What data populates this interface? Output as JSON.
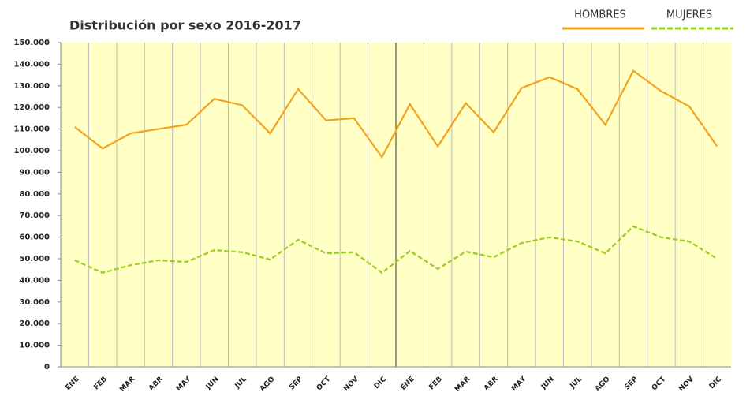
{
  "chart_data": {
    "type": "line",
    "title": "Distribución por sexo 2016-2017",
    "categories": [
      "ENE",
      "FEB",
      "MAR",
      "ABR",
      "MAY",
      "JUN",
      "JUL",
      "AGO",
      "SEP",
      "OCT",
      "NOV",
      "DIC",
      "ENE",
      "FEB",
      "MAR",
      "ABR",
      "MAY",
      "JUN",
      "JUL",
      "AGO",
      "SEP",
      "OCT",
      "NOV",
      "DIC"
    ],
    "series": [
      {
        "name": "HOMBRES",
        "color": "#f4a21e",
        "dash": false,
        "values": [
          111000,
          101000,
          108000,
          110000,
          112000,
          124000,
          121000,
          108000,
          128500,
          114000,
          115000,
          97000,
          121500,
          102000,
          122000,
          108500,
          129000,
          134000,
          128500,
          112000,
          137000,
          127500,
          120500,
          102000
        ]
      },
      {
        "name": "MUJERES",
        "color": "#9acd1e",
        "dash": true,
        "values": [
          49300,
          43500,
          47000,
          49300,
          48500,
          54000,
          53000,
          49600,
          58800,
          52500,
          53000,
          43500,
          53600,
          45300,
          53300,
          50700,
          57300,
          59900,
          58000,
          52500,
          65000,
          59900,
          58000,
          50000
        ]
      }
    ],
    "ylim": [
      0,
      150000
    ],
    "yticks": [
      0,
      {
        "value": 10000,
        "label": "10.000"
      },
      {
        "value": 20000,
        "label": "20.000"
      },
      {
        "value": 30000,
        "label": "30.000"
      },
      {
        "value": 40000,
        "label": "40.000"
      },
      {
        "value": 50000,
        "label": "50.000"
      },
      {
        "value": 60000,
        "label": "60.000"
      },
      {
        "value": 70000,
        "label": "70.000"
      },
      {
        "value": 80000,
        "label": "80.000"
      },
      {
        "value": 90000,
        "label": "90.000"
      },
      {
        "value": 100000,
        "label": "100.000"
      },
      {
        "value": 110000,
        "label": "110.000"
      },
      {
        "value": 120000,
        "label": "120.000"
      },
      {
        "value": 130000,
        "label": "130.000"
      },
      {
        "value": 140000,
        "label": "140.000"
      },
      {
        "value": 150000,
        "label": "150.000"
      }
    ],
    "legend": "top-right"
  }
}
